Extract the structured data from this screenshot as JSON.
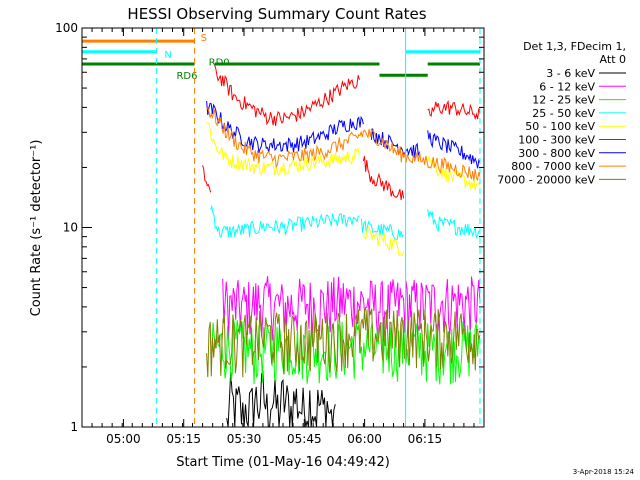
{
  "chart_data": {
    "type": "line",
    "title": "HESSI Observing Summary Count Rates",
    "xlabel": "Start Time (01-May-16 04:49:42)",
    "ylabel": "Count Rate (s⁻¹ detector⁻¹)",
    "x_tick_labels": [
      "05:00",
      "05:15",
      "05:30",
      "05:45",
      "06:00",
      "06:15"
    ],
    "x_tick_minutes": [
      10.3,
      25.3,
      40.3,
      55.3,
      70.3,
      85.3
    ],
    "x_range_minutes": [
      0,
      100
    ],
    "y_scale": "log",
    "y_range": [
      1,
      100
    ],
    "y_tick_labels": [
      "1",
      "10",
      "100"
    ],
    "date_stamp": "3-Apr-2018 15:24",
    "legend_header": [
      "Det 1,3, FDecim 1,",
      "Att 0"
    ],
    "series": [
      {
        "name": "3 - 6 keV",
        "color": "#000000",
        "segments": [
          [
            [
              36,
              1
            ],
            [
              37,
              1.4
            ],
            [
              38,
              1.2
            ],
            [
              39,
              1.3
            ],
            [
              40,
              1.1
            ],
            [
              41,
              1.3
            ],
            [
              42,
              1.2
            ],
            [
              43,
              1.4
            ],
            [
              44,
              1.3
            ],
            [
              45,
              1.5
            ],
            [
              46,
              1.2
            ],
            [
              47,
              1.4
            ],
            [
              48,
              1.3
            ],
            [
              49,
              1.2
            ],
            [
              50,
              1.4
            ],
            [
              51,
              1.3
            ],
            [
              52,
              1.2
            ],
            [
              53,
              1.4
            ],
            [
              54,
              1.3
            ],
            [
              55,
              1.2
            ],
            [
              56,
              1.3
            ],
            [
              57,
              1.4
            ],
            [
              58,
              1.2
            ],
            [
              59,
              1.3
            ],
            [
              60,
              1.2
            ],
            [
              61,
              1.3
            ],
            [
              62,
              1.1
            ],
            [
              63,
              1.3
            ]
          ]
        ]
      },
      {
        "name": "6 - 12 keV",
        "color": "#ff00ff",
        "segments": [
          [
            [
              35,
              4.2
            ],
            [
              40,
              4.0
            ],
            [
              45,
              4.3
            ],
            [
              50,
              4.0
            ],
            [
              55,
              4.2
            ],
            [
              60,
              4.1
            ],
            [
              65,
              4.3
            ],
            [
              70,
              4.2
            ],
            [
              75,
              4.0
            ],
            [
              80,
              4.2
            ],
            [
              85,
              4.1
            ],
            [
              90,
              4.3
            ],
            [
              99,
              4.2
            ]
          ]
        ]
      },
      {
        "name": "12 - 25 keV",
        "color": "#00ff00",
        "segments": [
          [
            [
              32,
              2.5
            ],
            [
              38,
              2.6
            ],
            [
              44,
              2.4
            ],
            [
              50,
              2.6
            ],
            [
              56,
              2.5
            ],
            [
              62,
              2.5
            ],
            [
              68,
              2.6
            ],
            [
              74,
              2.5
            ],
            [
              80,
              2.6
            ],
            [
              86,
              2.5
            ],
            [
              92,
              2.5
            ],
            [
              99,
              2.6
            ]
          ]
        ]
      },
      {
        "name": "25 - 50 keV",
        "color": "#00ffff",
        "segments": [
          [
            [
              32,
              13
            ],
            [
              34,
              9.5
            ],
            [
              38,
              9.6
            ],
            [
              42,
              9.8
            ],
            [
              46,
              10.2
            ],
            [
              50,
              10.0
            ],
            [
              54,
              10.4
            ],
            [
              58,
              10.6
            ],
            [
              62,
              10.8
            ],
            [
              66,
              11.0
            ],
            [
              69,
              11.4
            ]
          ],
          [
            [
              69.5,
              10.3
            ],
            [
              72,
              9.8
            ],
            [
              76,
              9.6
            ],
            [
              80,
              9.2
            ]
          ],
          [
            [
              86,
              12
            ],
            [
              88,
              10.5
            ],
            [
              92,
              10.2
            ],
            [
              96,
              9.8
            ],
            [
              99,
              9.6
            ]
          ]
        ]
      },
      {
        "name": "50 - 100 keV",
        "color": "#ffff00",
        "segments": [
          [
            [
              31,
              35
            ],
            [
              33,
              26
            ],
            [
              36,
              22
            ],
            [
              40,
              21
            ],
            [
              44,
              20
            ],
            [
              48,
              20
            ],
            [
              52,
              20.5
            ],
            [
              56,
              21
            ],
            [
              60,
              21.5
            ],
            [
              64,
              22
            ],
            [
              68,
              23
            ],
            [
              69,
              23
            ]
          ],
          [
            [
              70,
              9.5
            ],
            [
              74,
              8.8
            ],
            [
              78,
              8.2
            ],
            [
              80,
              7.6
            ]
          ],
          [
            [
              86,
              23
            ],
            [
              88,
              20
            ],
            [
              92,
              18
            ],
            [
              96,
              17
            ],
            [
              99,
              16
            ]
          ]
        ]
      },
      {
        "name": "100 - 300 keV",
        "color": "#ff0000",
        "segments": [
          [
            [
              30,
              19
            ],
            [
              32,
              15
            ]
          ],
          [
            [
              33,
              60
            ],
            [
              35,
              55
            ],
            [
              38,
              45
            ],
            [
              42,
              40
            ],
            [
              46,
              36
            ],
            [
              50,
              35
            ],
            [
              54,
              37
            ],
            [
              58,
              41
            ],
            [
              62,
              46
            ],
            [
              66,
              52
            ],
            [
              69,
              55
            ]
          ],
          [
            [
              70,
              22
            ],
            [
              72,
              18
            ],
            [
              76,
              16
            ],
            [
              80,
              14
            ]
          ],
          [
            [
              86,
              36
            ],
            [
              88,
              40
            ],
            [
              92,
              40
            ],
            [
              96,
              38
            ],
            [
              99,
              37
            ]
          ]
        ]
      },
      {
        "name": "300 - 800 keV",
        "color": "#0000ff",
        "segments": [
          [
            [
              31,
              40
            ],
            [
              33,
              38
            ],
            [
              36,
              32
            ],
            [
              40,
              28
            ],
            [
              44,
              26
            ],
            [
              48,
              26
            ],
            [
              52,
              26
            ],
            [
              56,
              27
            ],
            [
              60,
              29
            ],
            [
              64,
              32
            ],
            [
              68,
              34
            ],
            [
              70,
              33
            ]
          ],
          [
            [
              72,
              30
            ],
            [
              76,
              27
            ],
            [
              80,
              25
            ],
            [
              84,
              24
            ]
          ],
          [
            [
              86,
              29
            ],
            [
              88,
              27
            ],
            [
              92,
              25
            ],
            [
              96,
              23
            ],
            [
              99,
              21
            ]
          ]
        ]
      },
      {
        "name": "800 - 7000 keV",
        "color": "#ff8000",
        "segments": [
          [
            [
              31,
              40
            ],
            [
              33,
              36
            ],
            [
              36,
              30
            ],
            [
              40,
              25
            ],
            [
              44,
              23
            ],
            [
              48,
              22
            ],
            [
              52,
              22.5
            ],
            [
              56,
              23
            ],
            [
              60,
              24
            ],
            [
              64,
              26
            ],
            [
              68,
              28
            ],
            [
              70,
              30
            ],
            [
              72,
              29
            ],
            [
              74,
              28
            ],
            [
              76,
              26
            ],
            [
              78,
              24
            ],
            [
              80,
              23
            ],
            [
              84,
              22
            ],
            [
              88,
              21
            ],
            [
              92,
              20
            ],
            [
              96,
              19
            ],
            [
              99,
              18
            ]
          ]
        ]
      },
      {
        "name": "7000 - 20000 keV",
        "color": "#808000",
        "segments": [
          [
            [
              31,
              2.6
            ],
            [
              36,
              2.8
            ],
            [
              40,
              2.7
            ],
            [
              46,
              2.9
            ],
            [
              52,
              2.7
            ],
            [
              58,
              2.8
            ],
            [
              64,
              2.9
            ],
            [
              70,
              3.0
            ],
            [
              76,
              2.9
            ],
            [
              82,
              3.0
            ],
            [
              88,
              2.9
            ],
            [
              94,
              3.0
            ],
            [
              99,
              2.9
            ]
          ]
        ]
      }
    ],
    "state_bars": [
      {
        "label": "S",
        "color": "#ff8000",
        "level": 86,
        "label_level": 90,
        "label_x_minutes": 29.5,
        "segments": [
          [
            0,
            28
          ]
        ]
      },
      {
        "label": "N",
        "color": "#00ffff",
        "level": 76,
        "label_level": 74,
        "label_x_minutes": 20.5,
        "segments": [
          [
            0,
            18.5
          ],
          [
            80.5,
            99
          ]
        ]
      },
      {
        "label": "RD6",
        "color": "#008000",
        "level": 66,
        "label_level": 58,
        "label_x_minutes": 23.5,
        "segments": [
          [
            0,
            28
          ]
        ]
      },
      {
        "label": "RD0",
        "color": "#008000",
        "level": 66,
        "label_level": 68,
        "label_x_minutes": 31.5,
        "segments": [
          [
            33,
            74
          ],
          [
            86,
            99
          ]
        ]
      },
      {
        "label": "",
        "color": "#008000",
        "level": 58,
        "label_level": 58,
        "label_x_minutes": 0,
        "segments": [
          [
            74,
            86
          ]
        ]
      }
    ],
    "dashed_markers": [
      {
        "x_minutes": 18.5,
        "color": "#00ffff"
      },
      {
        "x_minutes": 28,
        "color": "#ff8000"
      },
      {
        "x_minutes": 99,
        "color": "#00ffff"
      }
    ],
    "solid_markers": [
      {
        "x_minutes": 80.5,
        "color": "#00ffff"
      }
    ]
  }
}
